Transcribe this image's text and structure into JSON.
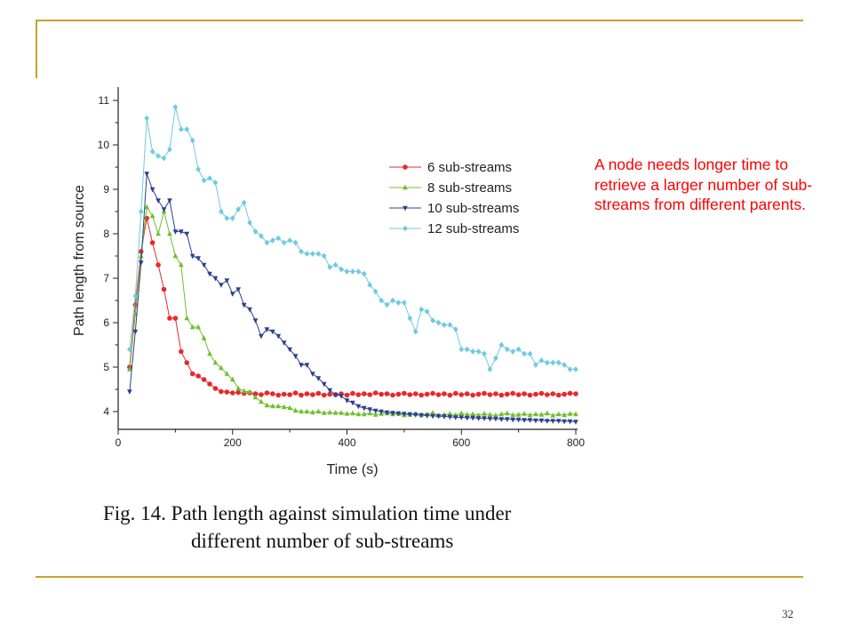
{
  "slide": {
    "frame_color": "#c9a227",
    "annotation": "A node needs longer time to retrieve a larger number of sub-streams from different parents.",
    "annotation_color": "#ff0000",
    "caption_line1": "Fig. 14.  Path length against simulation time under",
    "caption_line2": "different number of sub-streams",
    "page_number": "32"
  },
  "chart_data": {
    "type": "line",
    "title": "",
    "xlabel": "Time (s)",
    "ylabel": "Path length from source",
    "xlim": [
      0,
      800
    ],
    "ylim": [
      3.6,
      11.2
    ],
    "xticks": [
      "0",
      "200",
      "400",
      "600",
      "800"
    ],
    "yticks": [
      "4",
      "5",
      "6",
      "7",
      "8",
      "9",
      "10",
      "11"
    ],
    "grid": false,
    "legend_position": "top-right",
    "series": [
      {
        "name": "6 sub-streams",
        "color": "#e8282b",
        "marker": "circle",
        "x": [
          20,
          30,
          40,
          50,
          60,
          70,
          80,
          90,
          100,
          110,
          120,
          130,
          140,
          150,
          160,
          170,
          180,
          190,
          200,
          210,
          220,
          230,
          240,
          250,
          260,
          270,
          280,
          290,
          300,
          310,
          320,
          330,
          340,
          350,
          360,
          370,
          380,
          390,
          400,
          410,
          420,
          430,
          440,
          450,
          460,
          470,
          480,
          490,
          500,
          510,
          520,
          530,
          540,
          550,
          560,
          570,
          580,
          590,
          600,
          610,
          620,
          630,
          640,
          650,
          660,
          670,
          680,
          690,
          700,
          710,
          720,
          730,
          740,
          750,
          760,
          770,
          780,
          790,
          800
        ],
        "values": [
          5.0,
          6.4,
          7.6,
          8.35,
          7.8,
          7.3,
          6.75,
          6.1,
          6.1,
          5.35,
          5.1,
          4.85,
          4.8,
          4.72,
          4.62,
          4.52,
          4.45,
          4.44,
          4.42,
          4.43,
          4.41,
          4.42,
          4.4,
          4.38,
          4.42,
          4.4,
          4.37,
          4.39,
          4.38,
          4.42,
          4.37,
          4.4,
          4.38,
          4.41,
          4.37,
          4.39,
          4.38,
          4.4,
          4.37,
          4.41,
          4.38,
          4.4,
          4.38,
          4.42,
          4.39,
          4.4,
          4.37,
          4.39,
          4.41,
          4.38,
          4.4,
          4.37,
          4.39,
          4.41,
          4.38,
          4.4,
          4.37,
          4.41,
          4.38,
          4.4,
          4.37,
          4.39,
          4.41,
          4.38,
          4.4,
          4.37,
          4.39,
          4.41,
          4.38,
          4.4,
          4.37,
          4.39,
          4.41,
          4.38,
          4.4,
          4.37,
          4.39,
          4.41,
          4.4
        ]
      },
      {
        "name": "8 sub-streams",
        "color": "#6dbf2b",
        "marker": "triangle-up",
        "x": [
          20,
          30,
          40,
          50,
          60,
          70,
          80,
          90,
          100,
          110,
          120,
          130,
          140,
          150,
          160,
          170,
          180,
          190,
          200,
          210,
          220,
          230,
          240,
          250,
          260,
          270,
          280,
          290,
          300,
          310,
          320,
          330,
          340,
          350,
          360,
          370,
          380,
          390,
          400,
          410,
          420,
          430,
          440,
          450,
          460,
          470,
          480,
          490,
          500,
          510,
          520,
          530,
          540,
          550,
          560,
          570,
          580,
          590,
          600,
          610,
          620,
          630,
          640,
          650,
          660,
          670,
          680,
          690,
          700,
          710,
          720,
          730,
          740,
          750,
          760,
          770,
          780,
          790,
          800
        ],
        "values": [
          4.95,
          6.2,
          7.5,
          8.6,
          8.4,
          8.0,
          8.5,
          8.0,
          7.5,
          7.3,
          6.1,
          5.9,
          5.9,
          5.65,
          5.3,
          5.1,
          4.98,
          4.85,
          4.72,
          4.52,
          4.46,
          4.44,
          4.32,
          4.22,
          4.14,
          4.12,
          4.12,
          4.1,
          4.08,
          4.02,
          4.0,
          4.0,
          3.98,
          4.0,
          3.97,
          3.98,
          3.97,
          3.97,
          3.95,
          3.96,
          3.94,
          3.94,
          3.96,
          3.93,
          3.95,
          3.96,
          3.94,
          3.95,
          3.92,
          3.93,
          3.95,
          3.92,
          3.94,
          3.97,
          3.91,
          3.93,
          3.95,
          3.92,
          3.96,
          3.93,
          3.94,
          3.92,
          3.95,
          3.93,
          3.91,
          3.94,
          3.96,
          3.92,
          3.93,
          3.95,
          3.92,
          3.94,
          3.93,
          3.96,
          3.91,
          3.94,
          3.92,
          3.95,
          3.94
        ]
      },
      {
        "name": "10 sub-streams",
        "color": "#2c3f8f",
        "marker": "triangle-down",
        "x": [
          20,
          30,
          40,
          50,
          60,
          70,
          80,
          90,
          100,
          110,
          120,
          130,
          140,
          150,
          160,
          170,
          180,
          190,
          200,
          210,
          220,
          230,
          240,
          250,
          260,
          270,
          280,
          290,
          300,
          310,
          320,
          330,
          340,
          350,
          360,
          370,
          380,
          390,
          400,
          410,
          420,
          430,
          440,
          450,
          460,
          470,
          480,
          490,
          500,
          510,
          520,
          530,
          540,
          550,
          560,
          570,
          580,
          590,
          600,
          610,
          620,
          630,
          640,
          650,
          660,
          670,
          680,
          690,
          700,
          710,
          720,
          730,
          740,
          750,
          760,
          770,
          780,
          790,
          800
        ],
        "values": [
          4.45,
          5.8,
          7.35,
          9.35,
          9.0,
          8.75,
          8.55,
          8.75,
          8.05,
          8.05,
          8.0,
          7.5,
          7.45,
          7.3,
          7.1,
          7.0,
          6.85,
          6.95,
          6.65,
          6.75,
          6.4,
          6.3,
          6.05,
          5.7,
          5.85,
          5.8,
          5.7,
          5.55,
          5.4,
          5.25,
          5.05,
          5.05,
          4.85,
          4.75,
          4.62,
          4.48,
          4.38,
          4.35,
          4.25,
          4.2,
          4.12,
          4.08,
          4.05,
          4.02,
          4.0,
          3.98,
          3.97,
          3.96,
          3.95,
          3.94,
          3.93,
          3.92,
          3.91,
          3.9,
          3.9,
          3.89,
          3.88,
          3.87,
          3.87,
          3.86,
          3.86,
          3.85,
          3.85,
          3.84,
          3.84,
          3.83,
          3.83,
          3.82,
          3.82,
          3.81,
          3.81,
          3.8,
          3.8,
          3.79,
          3.79,
          3.79,
          3.78,
          3.78,
          3.77
        ]
      },
      {
        "name": "12 sub-streams",
        "color": "#6ecae0",
        "marker": "diamond",
        "x": [
          20,
          30,
          40,
          50,
          60,
          70,
          80,
          90,
          100,
          110,
          120,
          130,
          140,
          150,
          160,
          170,
          180,
          190,
          200,
          210,
          220,
          230,
          240,
          250,
          260,
          270,
          280,
          290,
          300,
          310,
          320,
          330,
          340,
          350,
          360,
          370,
          380,
          390,
          400,
          410,
          420,
          430,
          440,
          450,
          460,
          470,
          480,
          490,
          500,
          510,
          520,
          530,
          540,
          550,
          560,
          570,
          580,
          590,
          600,
          610,
          620,
          630,
          640,
          650,
          660,
          670,
          680,
          690,
          700,
          710,
          720,
          730,
          740,
          750,
          760,
          770,
          780,
          790,
          800
        ],
        "values": [
          5.4,
          6.6,
          8.5,
          10.6,
          9.85,
          9.75,
          9.7,
          9.9,
          10.85,
          10.35,
          10.35,
          10.1,
          9.45,
          9.2,
          9.25,
          9.15,
          8.5,
          8.35,
          8.35,
          8.55,
          8.7,
          8.25,
          8.05,
          7.95,
          7.8,
          7.85,
          7.9,
          7.8,
          7.85,
          7.8,
          7.6,
          7.55,
          7.55,
          7.55,
          7.5,
          7.25,
          7.3,
          7.2,
          7.15,
          7.15,
          7.15,
          7.1,
          6.85,
          6.7,
          6.5,
          6.4,
          6.5,
          6.45,
          6.45,
          6.1,
          5.8,
          6.3,
          6.25,
          6.05,
          6.0,
          5.95,
          5.95,
          5.85,
          5.4,
          5.4,
          5.35,
          5.35,
          5.3,
          4.95,
          5.2,
          5.5,
          5.4,
          5.35,
          5.4,
          5.3,
          5.3,
          5.05,
          5.15,
          5.1,
          5.1,
          5.1,
          5.05,
          4.95,
          4.95
        ]
      }
    ]
  }
}
